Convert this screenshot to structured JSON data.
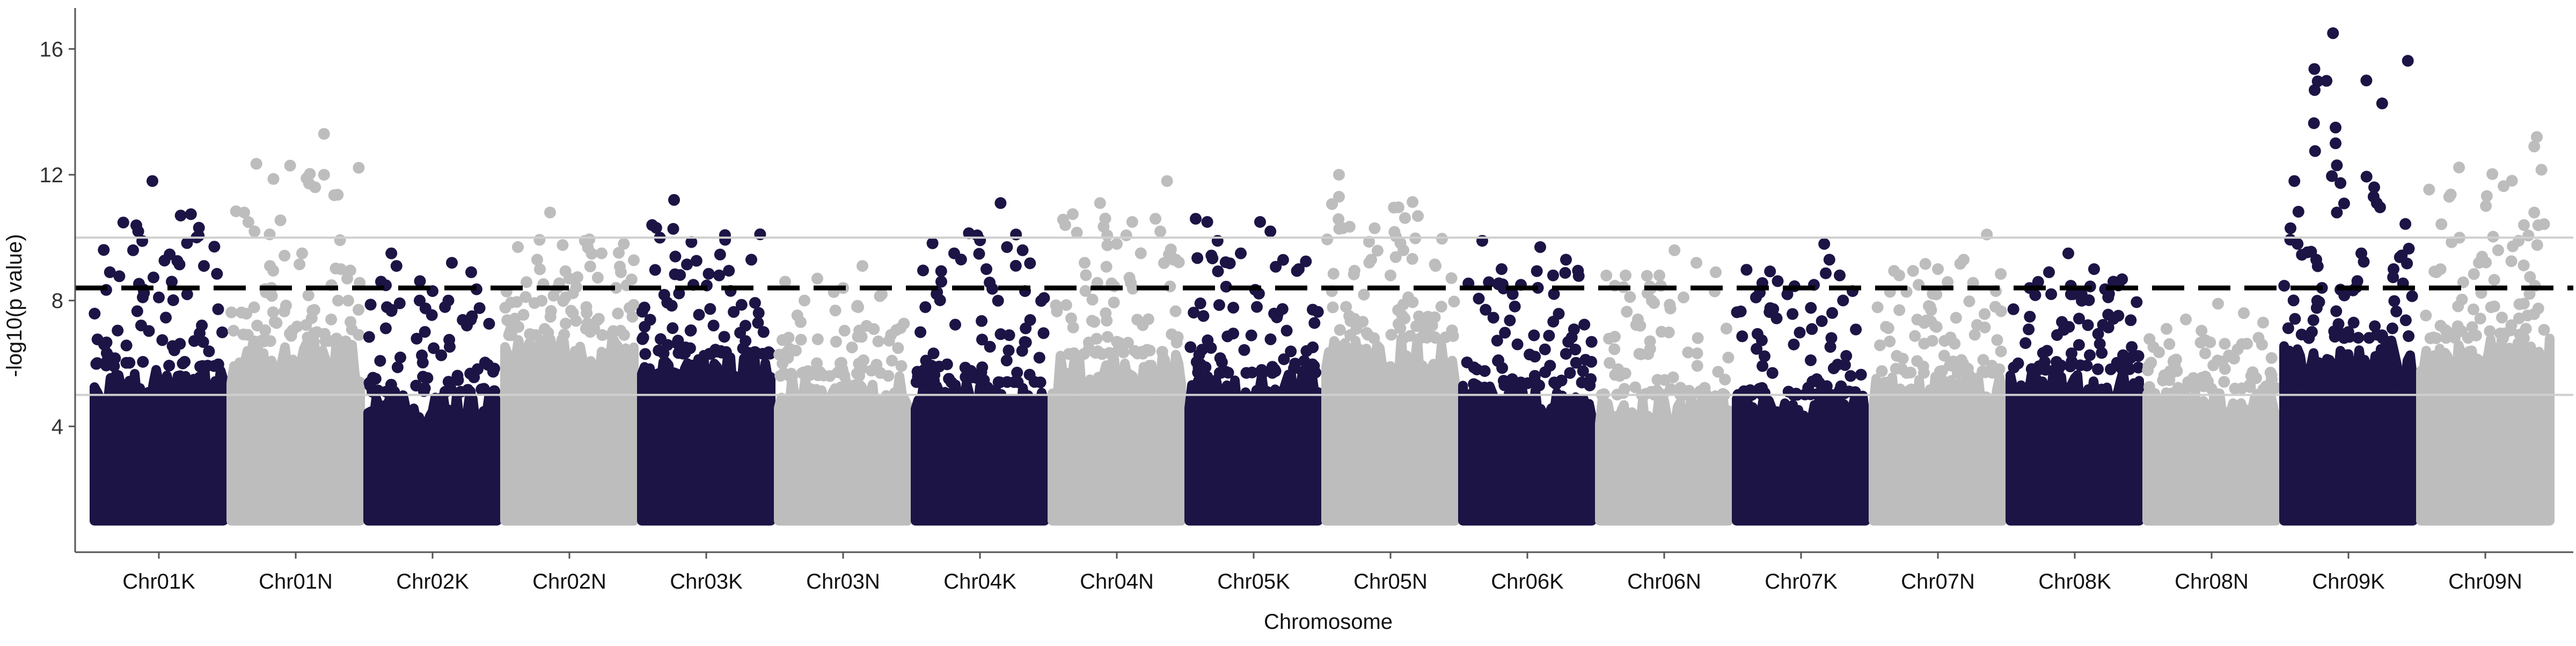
{
  "chart_data": {
    "type": "scatter",
    "subtype": "manhattan",
    "title": "",
    "xlabel": "Chromosome",
    "ylabel": "-log10(p value)",
    "ylim": [
      0,
      17.3
    ],
    "yticks": [
      4,
      8,
      12,
      16
    ],
    "grid": false,
    "legend": "none",
    "colors": {
      "dark": "#1c1445",
      "light": "#bdbdbd",
      "threshold": "#000000",
      "refline": "#cfcfcf",
      "axis": "#555555"
    },
    "threshold_line": {
      "y": 8.4,
      "style": "dashed"
    },
    "reference_lines": [
      10.0,
      5.0
    ],
    "categories": [
      "Chr01K",
      "Chr01N",
      "Chr02K",
      "Chr02N",
      "Chr03K",
      "Chr03N",
      "Chr04K",
      "Chr04N",
      "Chr05K",
      "Chr05N",
      "Chr06K",
      "Chr06N",
      "Chr07K",
      "Chr07N",
      "Chr08K",
      "Chr08N",
      "Chr09K",
      "Chr09N"
    ],
    "series": [
      {
        "category": "Chr01K",
        "color": "dark",
        "bulk_top": 5.9,
        "max": 11.8,
        "top_points": [
          [
            0.45,
            11.8
          ],
          [
            0.34,
            10.2
          ],
          [
            0.3,
            9.6
          ],
          [
            0.85,
            9.1
          ],
          [
            0.12,
            8.9
          ],
          [
            0.6,
            8.6
          ],
          [
            0.72,
            8.2
          ],
          [
            0.5,
            8.1
          ]
        ]
      },
      {
        "category": "Chr01N",
        "color": "light",
        "bulk_top": 6.7,
        "max": 13.3,
        "top_points": [
          [
            0.72,
            13.3
          ],
          [
            0.72,
            12.0
          ],
          [
            0.1,
            10.8
          ],
          [
            0.18,
            10.2
          ],
          [
            0.55,
            9.5
          ],
          [
            0.3,
            9.1
          ],
          [
            0.85,
            9.0
          ],
          [
            0.9,
            8.7
          ]
        ]
      },
      {
        "category": "Chr02K",
        "color": "dark",
        "bulk_top": 5.1,
        "max": 9.5,
        "top_points": [
          [
            0.18,
            9.5
          ],
          [
            0.22,
            9.1
          ],
          [
            0.65,
            9.2
          ],
          [
            0.8,
            8.9
          ],
          [
            0.1,
            8.6
          ],
          [
            0.5,
            8.3
          ],
          [
            0.4,
            8.0
          ]
        ]
      },
      {
        "category": "Chr02N",
        "color": "light",
        "bulk_top": 6.9,
        "max": 10.8,
        "top_points": [
          [
            0.35,
            10.8
          ],
          [
            0.62,
            9.9
          ],
          [
            0.1,
            9.7
          ],
          [
            0.75,
            9.5
          ],
          [
            0.25,
            9.3
          ],
          [
            0.9,
            8.9
          ],
          [
            0.5,
            8.7
          ]
        ]
      },
      {
        "category": "Chr03K",
        "color": "dark",
        "bulk_top": 6.3,
        "max": 11.2,
        "top_points": [
          [
            0.25,
            11.2
          ],
          [
            0.08,
            10.4
          ],
          [
            0.14,
            10.0
          ],
          [
            0.26,
            9.4
          ],
          [
            0.85,
            9.3
          ],
          [
            0.6,
            8.8
          ],
          [
            0.4,
            8.5
          ]
        ]
      },
      {
        "category": "Chr03N",
        "color": "light",
        "bulk_top": 5.6,
        "max": 9.1,
        "top_points": [
          [
            0.65,
            9.1
          ],
          [
            0.3,
            8.7
          ],
          [
            0.05,
            8.6
          ],
          [
            0.5,
            8.4
          ],
          [
            0.8,
            8.2
          ],
          [
            0.2,
            8.0
          ]
        ]
      },
      {
        "category": "Chr04K",
        "color": "dark",
        "bulk_top": 5.4,
        "max": 11.1,
        "top_points": [
          [
            0.66,
            11.1
          ],
          [
            0.78,
            10.1
          ],
          [
            0.71,
            9.7
          ],
          [
            0.3,
            9.5
          ],
          [
            0.55,
            9.0
          ],
          [
            0.2,
            8.6
          ],
          [
            0.85,
            8.3
          ]
        ]
      },
      {
        "category": "Chr04N",
        "color": "light",
        "bulk_top": 6.3,
        "max": 11.8,
        "top_points": [
          [
            0.89,
            11.8
          ],
          [
            0.37,
            11.1
          ],
          [
            0.62,
            10.5
          ],
          [
            0.8,
            10.6
          ],
          [
            0.1,
            10.4
          ],
          [
            0.5,
            9.8
          ],
          [
            0.25,
            9.2
          ]
        ]
      },
      {
        "category": "Chr05K",
        "color": "dark",
        "bulk_top": 5.7,
        "max": 10.6,
        "top_points": [
          [
            0.05,
            10.6
          ],
          [
            0.14,
            10.5
          ],
          [
            0.55,
            10.5
          ],
          [
            0.63,
            10.2
          ],
          [
            0.22,
            9.9
          ],
          [
            0.4,
            9.5
          ],
          [
            0.85,
            9.0
          ]
        ]
      },
      {
        "category": "Chr05N",
        "color": "light",
        "bulk_top": 6.8,
        "max": 12.0,
        "top_points": [
          [
            0.1,
            12.0
          ],
          [
            0.1,
            11.3
          ],
          [
            0.13,
            10.3
          ],
          [
            0.6,
            9.6
          ],
          [
            0.35,
            9.3
          ],
          [
            0.85,
            9.1
          ],
          [
            0.5,
            8.8
          ]
        ]
      },
      {
        "category": "Chr06K",
        "color": "dark",
        "bulk_top": 5.3,
        "max": 9.9,
        "top_points": [
          [
            0.15,
            9.9
          ],
          [
            0.6,
            9.7
          ],
          [
            0.8,
            9.3
          ],
          [
            0.3,
            9.0
          ],
          [
            0.7,
            8.8
          ],
          [
            0.45,
            8.5
          ]
        ]
      },
      {
        "category": "Chr06N",
        "color": "light",
        "bulk_top": 5.0,
        "max": 9.6,
        "top_points": [
          [
            0.58,
            9.6
          ],
          [
            0.75,
            9.2
          ],
          [
            0.2,
            8.8
          ],
          [
            0.9,
            8.9
          ],
          [
            0.4,
            8.4
          ],
          [
            0.65,
            8.1
          ]
        ]
      },
      {
        "category": "Chr07K",
        "color": "dark",
        "bulk_top": 5.0,
        "max": 9.8,
        "top_points": [
          [
            0.68,
            9.8
          ],
          [
            0.72,
            9.3
          ],
          [
            0.8,
            8.8
          ],
          [
            0.6,
            8.5
          ],
          [
            0.9,
            8.3
          ],
          [
            0.15,
            8.1
          ]
        ]
      },
      {
        "category": "Chr07N",
        "color": "light",
        "bulk_top": 5.7,
        "max": 10.1,
        "top_points": [
          [
            0.88,
            10.1
          ],
          [
            0.7,
            9.3
          ],
          [
            0.5,
            9.0
          ],
          [
            0.2,
            8.8
          ],
          [
            0.35,
            8.5
          ],
          [
            0.95,
            8.3
          ]
        ]
      },
      {
        "category": "Chr08K",
        "color": "dark",
        "bulk_top": 5.8,
        "max": 9.5,
        "top_points": [
          [
            0.45,
            9.5
          ],
          [
            0.65,
            9.0
          ],
          [
            0.3,
            8.9
          ],
          [
            0.8,
            8.6
          ],
          [
            0.15,
            8.4
          ],
          [
            0.55,
            8.2
          ]
        ]
      },
      {
        "category": "Chr08N",
        "color": "light",
        "bulk_top": 5.2,
        "max": 7.9,
        "top_points": [
          [
            0.55,
            7.9
          ],
          [
            0.75,
            7.6
          ],
          [
            0.3,
            7.4
          ],
          [
            0.9,
            7.3
          ],
          [
            0.15,
            7.1
          ]
        ]
      },
      {
        "category": "Chr09K",
        "color": "dark",
        "bulk_top": 6.8,
        "max": 16.5,
        "top_points": [
          [
            0.38,
            16.5
          ],
          [
            0.4,
            13.5
          ],
          [
            0.4,
            13.0
          ],
          [
            0.41,
            12.3
          ],
          [
            0.08,
            11.8
          ],
          [
            0.7,
            11.6
          ],
          [
            0.72,
            11.1
          ],
          [
            0.41,
            10.8
          ],
          [
            0.05,
            10.3
          ],
          [
            0.6,
            9.5
          ],
          [
            0.25,
            9.3
          ],
          [
            0.85,
            9.0
          ]
        ]
      },
      {
        "category": "Chr09N",
        "color": "light",
        "bulk_top": 6.8,
        "max": 13.2,
        "top_points": [
          [
            0.9,
            13.2
          ],
          [
            0.88,
            12.9
          ],
          [
            0.22,
            11.3
          ],
          [
            0.88,
            10.8
          ],
          [
            0.8,
            10.4
          ],
          [
            0.3,
            10.0
          ],
          [
            0.6,
            9.6
          ],
          [
            0.45,
            9.2
          ],
          [
            0.12,
            8.9
          ]
        ]
      }
    ]
  }
}
